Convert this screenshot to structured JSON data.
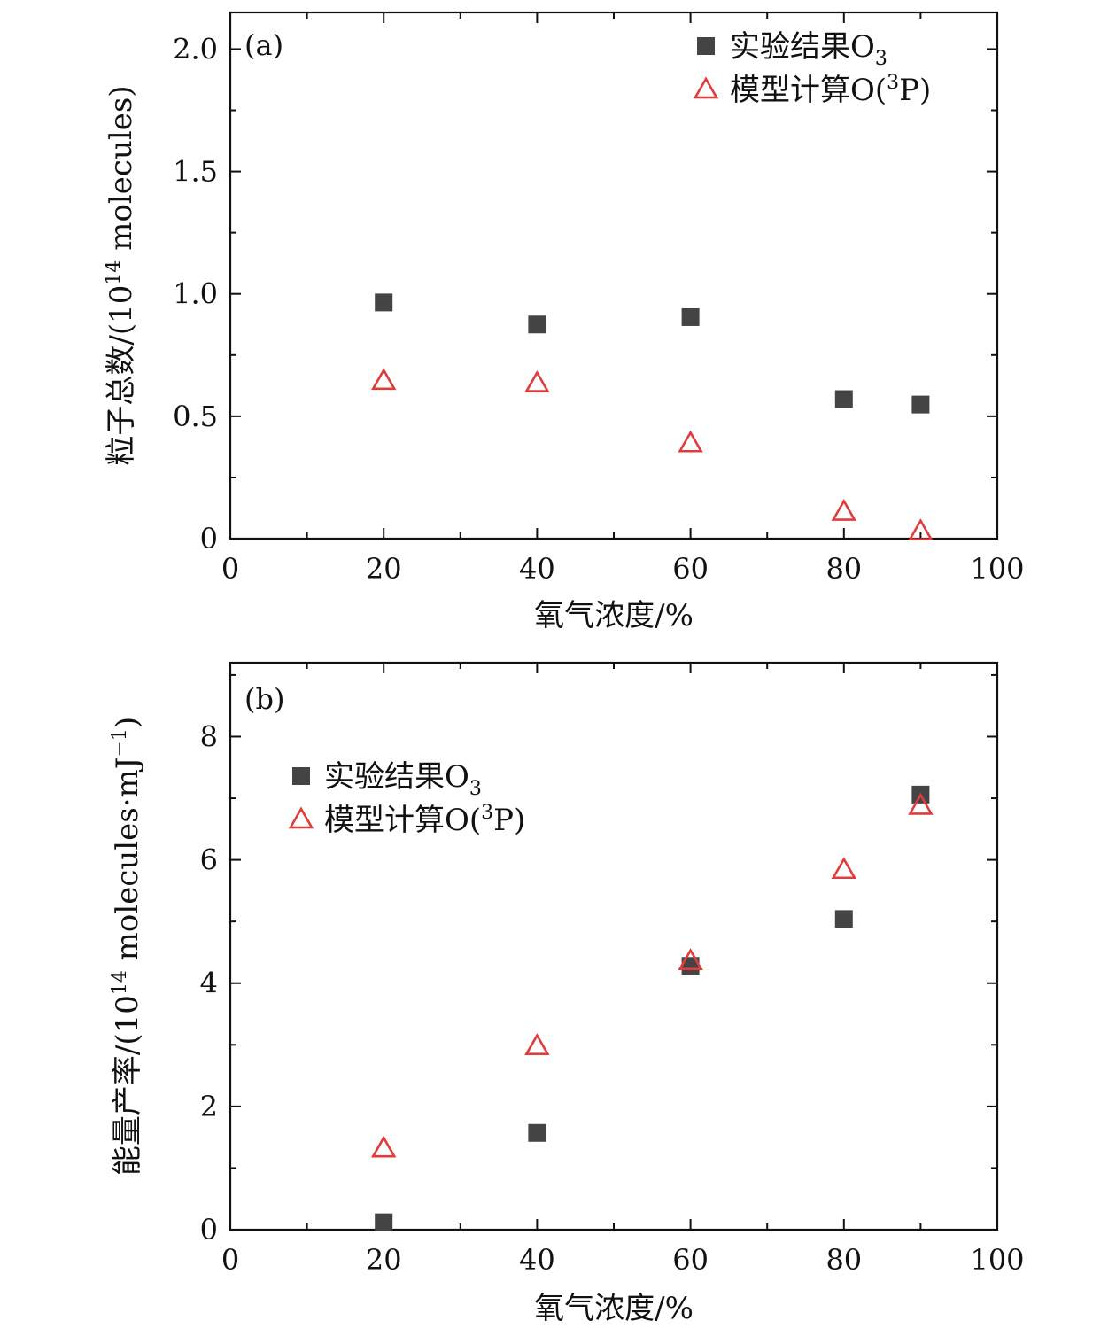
{
  "chart_data": [
    {
      "type": "scatter",
      "panel_label": "(a)",
      "xlabel": "氧气浓度/%",
      "ylabel_prefix": "粒子总数/(10",
      "ylabel_sup": "14",
      "ylabel_suffix": " molecules)",
      "xlim": [
        0,
        100
      ],
      "ylim": [
        0,
        2.15
      ],
      "xticks": [
        0,
        20,
        40,
        60,
        80,
        100
      ],
      "xtick_labels": [
        "0",
        "20",
        "40",
        "60",
        "80",
        "100"
      ],
      "yticks": [
        0,
        0.5,
        1.0,
        1.5,
        2.0
      ],
      "ytick_labels": [
        "0",
        "0.5",
        "1.0",
        "1.5",
        "2.0"
      ],
      "legend_position": "top-right",
      "series": [
        {
          "name": "实验结果O₃",
          "legend_text": "实验结果O",
          "legend_sub": "3",
          "marker": "square",
          "color": "#444444",
          "x": [
            20,
            40,
            60,
            80,
            90
          ],
          "y": [
            0.965,
            0.875,
            0.905,
            0.57,
            0.548
          ]
        },
        {
          "name": "模型计算O(³P)",
          "legend_text": "模型计算O(",
          "legend_sup": "3",
          "legend_tail": "P)",
          "marker": "triangle-open",
          "color": "#e03c3c",
          "x": [
            20,
            40,
            60,
            80,
            90
          ],
          "y": [
            0.645,
            0.635,
            0.39,
            0.11,
            0.03
          ]
        }
      ]
    },
    {
      "type": "scatter",
      "panel_label": "(b)",
      "xlabel": "氧气浓度/%",
      "ylabel_prefix": "能量产率/(10",
      "ylabel_sup": "14",
      "ylabel_middle": " molecules·mJ",
      "ylabel_sup2": "−1",
      "ylabel_suffix": ")",
      "xlim": [
        0,
        100
      ],
      "ylim": [
        0,
        9.2
      ],
      "xticks": [
        0,
        20,
        40,
        60,
        80,
        100
      ],
      "xtick_labels": [
        "0",
        "20",
        "40",
        "60",
        "80",
        "100"
      ],
      "yticks": [
        0,
        2,
        4,
        6,
        8
      ],
      "ytick_labels": [
        "0",
        "2",
        "4",
        "6",
        "8"
      ],
      "legend_position": "top-left",
      "series": [
        {
          "name": "实验结果O₃",
          "legend_text": "实验结果O",
          "legend_sub": "3",
          "marker": "square",
          "color": "#444444",
          "x": [
            20,
            40,
            60,
            80,
            90
          ],
          "y": [
            0.12,
            1.57,
            4.28,
            5.04,
            7.06
          ]
        },
        {
          "name": "模型计算O(³P)",
          "legend_text": "模型计算O(",
          "legend_sup": "3",
          "legend_tail": "P)",
          "marker": "triangle-open",
          "color": "#e03c3c",
          "x": [
            20,
            40,
            60,
            80,
            90
          ],
          "y": [
            1.32,
            2.98,
            4.36,
            5.84,
            6.88
          ]
        }
      ]
    }
  ]
}
